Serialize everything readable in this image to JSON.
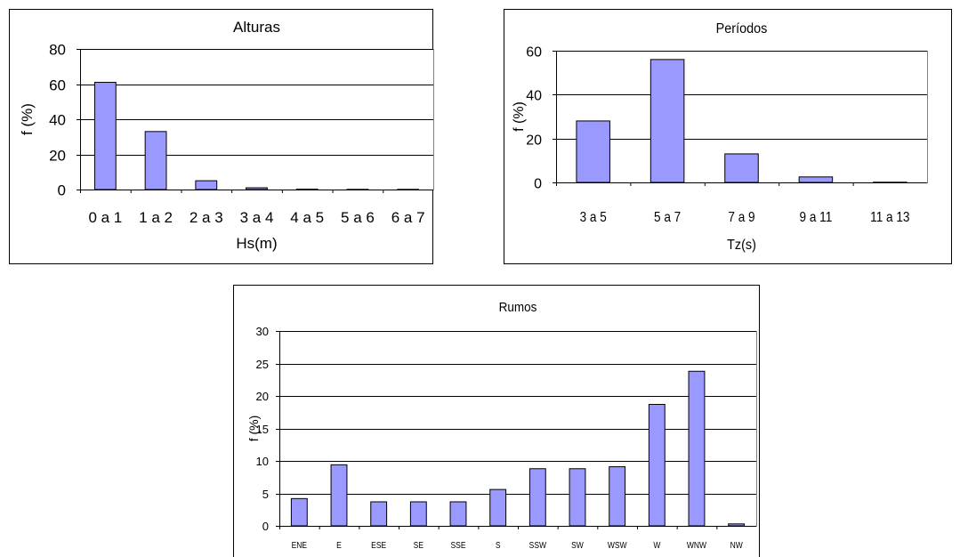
{
  "chart_data": [
    {
      "type": "bar",
      "title": "Alturas",
      "xlabel": "Hs(m)",
      "ylabel": "f (%)",
      "categories": [
        "0 a 1",
        "1 a 2",
        "2 a 3",
        "3 a 4",
        "4 a 5",
        "5 a 6",
        "6 a 7"
      ],
      "values": [
        61,
        33,
        5,
        1,
        0.2,
        0.1,
        0.1
      ],
      "ylim": [
        0,
        80
      ],
      "yticks": [
        0,
        20,
        40,
        60,
        80
      ],
      "grid": true,
      "bar_color": "#9999ff"
    },
    {
      "type": "bar",
      "title": "Períodos",
      "xlabel": "Tz(s)",
      "ylabel": "f (%)",
      "categories": [
        "3 a 5",
        "5 a 7",
        "7 a 9",
        "9 a 11",
        "11 a 13"
      ],
      "values": [
        28,
        56,
        13,
        2.5,
        0.1
      ],
      "ylim": [
        0,
        60
      ],
      "yticks": [
        0,
        20,
        40,
        60
      ],
      "grid": true,
      "bar_color": "#9999ff"
    },
    {
      "type": "bar",
      "title": "Rumos",
      "xlabel": "",
      "ylabel": "f (%)",
      "categories": [
        "ENE",
        "E",
        "ESE",
        "SE",
        "SSE",
        "S",
        "SSW",
        "SW",
        "WSW",
        "W",
        "WNW",
        "NW"
      ],
      "values": [
        4.2,
        9.4,
        3.7,
        3.7,
        3.7,
        5.6,
        8.8,
        8.8,
        9.1,
        18.7,
        23.8,
        0.3
      ],
      "ylim": [
        0,
        30
      ],
      "yticks": [
        0,
        5,
        10,
        15,
        20,
        25,
        30
      ],
      "grid": true,
      "bar_color": "#9999ff"
    }
  ]
}
